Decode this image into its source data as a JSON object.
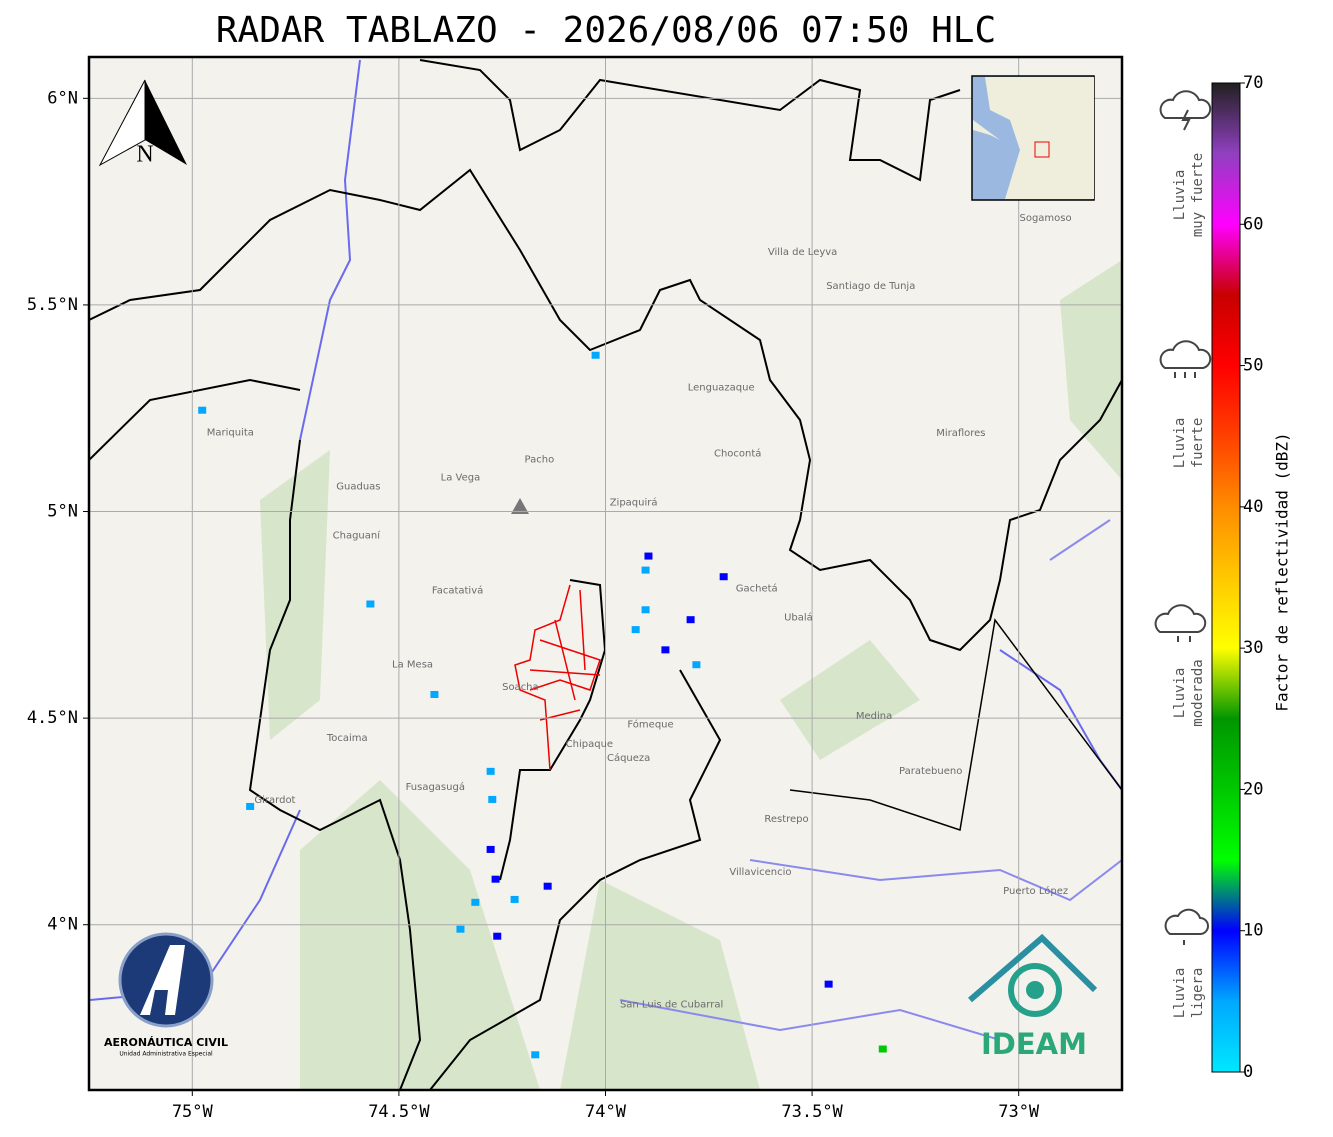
{
  "title": "RADAR TABLAZO - 2026/08/06 07:50 HLC",
  "map": {
    "lon_lim": [
      -75.25,
      -72.75
    ],
    "lat_lim": [
      3.6,
      6.1
    ],
    "lon_ticks": [
      {
        "value": -75,
        "label": "75°W"
      },
      {
        "value": -74.5,
        "label": "74.5°W"
      },
      {
        "value": -74,
        "label": "74°W"
      },
      {
        "value": -73.5,
        "label": "73.5°W"
      },
      {
        "value": -73,
        "label": "73°W"
      }
    ],
    "lat_ticks": [
      {
        "value": 6,
        "label": "6°N"
      },
      {
        "value": 5.5,
        "label": "5.5°N"
      },
      {
        "value": 5,
        "label": "5°N"
      },
      {
        "value": 4.5,
        "label": "4.5°N"
      },
      {
        "value": 4,
        "label": "4°N"
      }
    ],
    "north": "N",
    "places": [
      {
        "name": "Villavicencio",
        "lon": -73.625,
        "lat": 4.128
      },
      {
        "name": "Villa de Leyva",
        "lon": -73.523,
        "lat": 5.628
      },
      {
        "name": "Santiago de Tunja",
        "lon": -73.358,
        "lat": 5.546
      },
      {
        "name": "Zipaquirá",
        "lon": -73.932,
        "lat": 5.022
      },
      {
        "name": "Facatativá",
        "lon": -74.358,
        "lat": 4.809
      },
      {
        "name": "Fusagasugá",
        "lon": -74.412,
        "lat": 4.333
      },
      {
        "name": "Girardot",
        "lon": -74.8,
        "lat": 4.302
      },
      {
        "name": "Chocontá",
        "lon": -73.68,
        "lat": 5.14
      },
      {
        "name": "Sogamoso",
        "lon": -72.935,
        "lat": 5.71
      },
      {
        "name": "Gachetá",
        "lon": -73.634,
        "lat": 4.814
      },
      {
        "name": "Medina",
        "lon": -73.35,
        "lat": 4.505
      },
      {
        "name": "Paratebueno",
        "lon": -73.213,
        "lat": 4.372
      },
      {
        "name": "Puerto López",
        "lon": -72.959,
        "lat": 4.082
      },
      {
        "name": "Restrepo",
        "lon": -73.562,
        "lat": 4.256
      },
      {
        "name": "La Mesa",
        "lon": -74.467,
        "lat": 4.63
      },
      {
        "name": "Tocaima",
        "lon": -74.625,
        "lat": 4.452
      },
      {
        "name": "Cáqueza",
        "lon": -73.944,
        "lat": 4.403
      },
      {
        "name": "Chipaque",
        "lon": -74.039,
        "lat": 4.437
      },
      {
        "name": "La Vega",
        "lon": -74.351,
        "lat": 5.082
      },
      {
        "name": "Pacho",
        "lon": -74.16,
        "lat": 5.126
      },
      {
        "name": "Guaduas",
        "lon": -74.598,
        "lat": 5.06
      },
      {
        "name": "Ubalá",
        "lon": -73.533,
        "lat": 4.744
      },
      {
        "name": "San Luis de Cubarral",
        "lon": -73.84,
        "lat": 3.807
      },
      {
        "name": "Fómeque",
        "lon": -73.891,
        "lat": 4.485
      },
      {
        "name": "Soacha",
        "lon": -74.206,
        "lat": 4.575
      },
      {
        "name": "Chaguaní",
        "lon": -74.603,
        "lat": 4.942
      },
      {
        "name": "Mariquita",
        "lon": -74.908,
        "lat": 5.191
      },
      {
        "name": "Miraflores",
        "lon": -73.14,
        "lat": 5.19
      },
      {
        "name": "Lenguazaque",
        "lon": -73.72,
        "lat": 5.3
      }
    ],
    "echoes": [
      {
        "lon": -74.976,
        "lat": 5.244,
        "dbz": 7
      },
      {
        "lon": -74.569,
        "lat": 4.775,
        "dbz": 7
      },
      {
        "lon": -74.414,
        "lat": 4.556,
        "dbz": 6
      },
      {
        "lon": -74.86,
        "lat": 4.285,
        "dbz": 5
      },
      {
        "lon": -74.278,
        "lat": 4.37,
        "dbz": 6
      },
      {
        "lon": -74.274,
        "lat": 4.302,
        "dbz": 7
      },
      {
        "lon": -74.278,
        "lat": 4.181,
        "dbz": 8
      },
      {
        "lon": -74.266,
        "lat": 4.109,
        "dbz": 11
      },
      {
        "lon": -74.315,
        "lat": 4.053,
        "dbz": 6
      },
      {
        "lon": -74.22,
        "lat": 4.06,
        "dbz": 7
      },
      {
        "lon": -74.14,
        "lat": 4.092,
        "dbz": 10
      },
      {
        "lon": -74.262,
        "lat": 3.971,
        "dbz": 8
      },
      {
        "lon": -74.351,
        "lat": 3.988,
        "dbz": 6
      },
      {
        "lon": -74.17,
        "lat": 3.684,
        "dbz": 7
      },
      {
        "lon": -73.903,
        "lat": 4.857,
        "dbz": 6
      },
      {
        "lon": -73.896,
        "lat": 4.891,
        "dbz": 9
      },
      {
        "lon": -73.927,
        "lat": 4.713,
        "dbz": 5
      },
      {
        "lon": -73.903,
        "lat": 4.761,
        "dbz": 6
      },
      {
        "lon": -73.794,
        "lat": 4.737,
        "dbz": 8
      },
      {
        "lon": -73.855,
        "lat": 4.664,
        "dbz": 9
      },
      {
        "lon": -73.714,
        "lat": 4.841,
        "dbz": 9
      },
      {
        "lon": -73.78,
        "lat": 4.628,
        "dbz": 5
      },
      {
        "lon": -73.46,
        "lat": 3.855,
        "dbz": 8
      },
      {
        "lon": -73.329,
        "lat": 3.698,
        "dbz": 18
      },
      {
        "lon": -74.024,
        "lat": 5.377,
        "dbz": 6
      }
    ]
  },
  "colorbar": {
    "label": "Factor de reflectividad (dBZ)",
    "lim": [
      0,
      70
    ],
    "ticks": [
      0,
      10,
      20,
      30,
      40,
      50,
      60,
      70
    ],
    "colors": [
      "#00e8ff",
      "#00a8ff",
      "#0000ff",
      "#00ff00",
      "#00c800",
      "#009600",
      "#ffff00",
      "#ffc800",
      "#ff8c00",
      "#ff4000",
      "#ff0000",
      "#c80000",
      "#ff00ff",
      "#9040c0",
      "#202020"
    ]
  },
  "rain_levels": [
    {
      "lines": [
        "Lluvia",
        "muy fuerte"
      ]
    },
    {
      "lines": [
        "Lluvia",
        "fuerte"
      ]
    },
    {
      "lines": [
        "Lluvia",
        "moderada"
      ]
    },
    {
      "lines": [
        "Lluvia",
        "ligera"
      ]
    }
  ],
  "logos": {
    "aeronautica": "AERONÁUTICA CIVIL",
    "aeronautica_sub": "Unidad Administrativa Especial",
    "ideam": "IDEAM"
  }
}
